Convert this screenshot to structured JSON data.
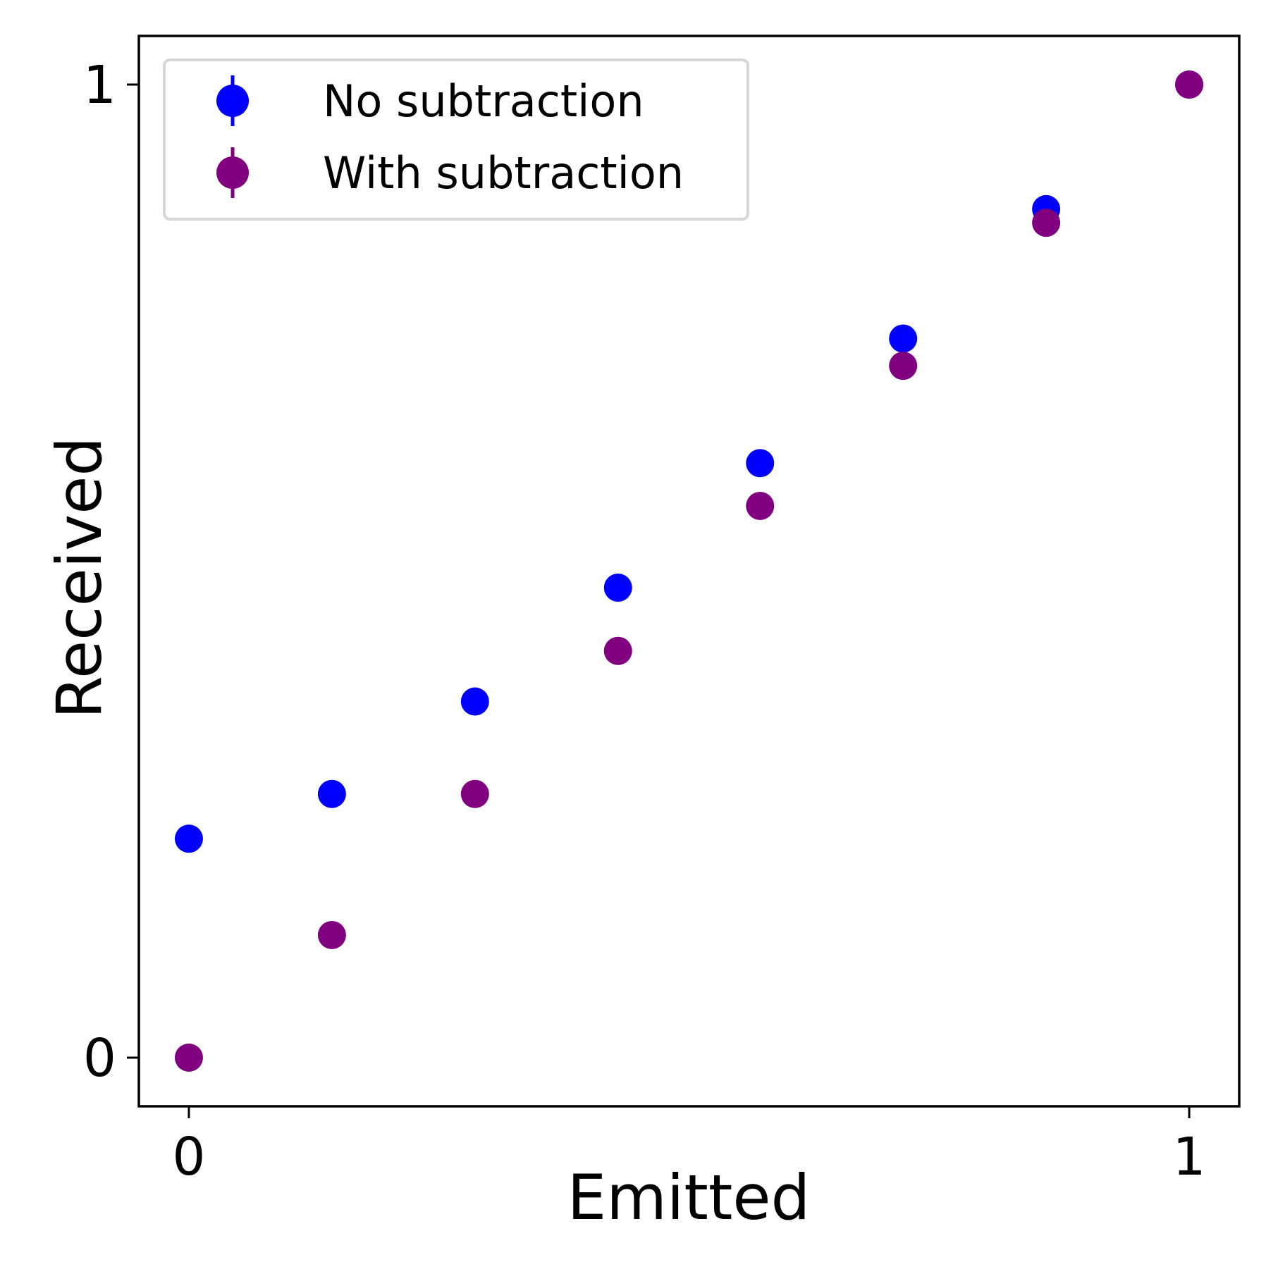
{
  "chart_data": {
    "type": "scatter",
    "title": "",
    "xlabel": "Emitted",
    "ylabel": "Received",
    "xlim": [
      -0.05,
      1.05
    ],
    "ylim": [
      -0.05,
      1.05
    ],
    "xticks": [
      0,
      1
    ],
    "xtick_labels": [
      "0",
      "1"
    ],
    "yticks": [
      0,
      1
    ],
    "ytick_labels": [
      "0",
      "1"
    ],
    "grid": false,
    "legend_position": "top-left",
    "series": [
      {
        "name": "No subtraction",
        "color": "#0000ff",
        "x": [
          0.0,
          0.143,
          0.286,
          0.429,
          0.571,
          0.714,
          0.857,
          1.0
        ],
        "y": [
          0.225,
          0.271,
          0.366,
          0.483,
          0.611,
          0.739,
          0.872,
          1.0
        ]
      },
      {
        "name": "With subtraction",
        "color": "#800080",
        "x": [
          0.0,
          0.143,
          0.286,
          0.429,
          0.571,
          0.714,
          0.857,
          1.0
        ],
        "y": [
          0.0,
          0.126,
          0.271,
          0.418,
          0.567,
          0.711,
          0.858,
          1.0
        ]
      }
    ]
  }
}
